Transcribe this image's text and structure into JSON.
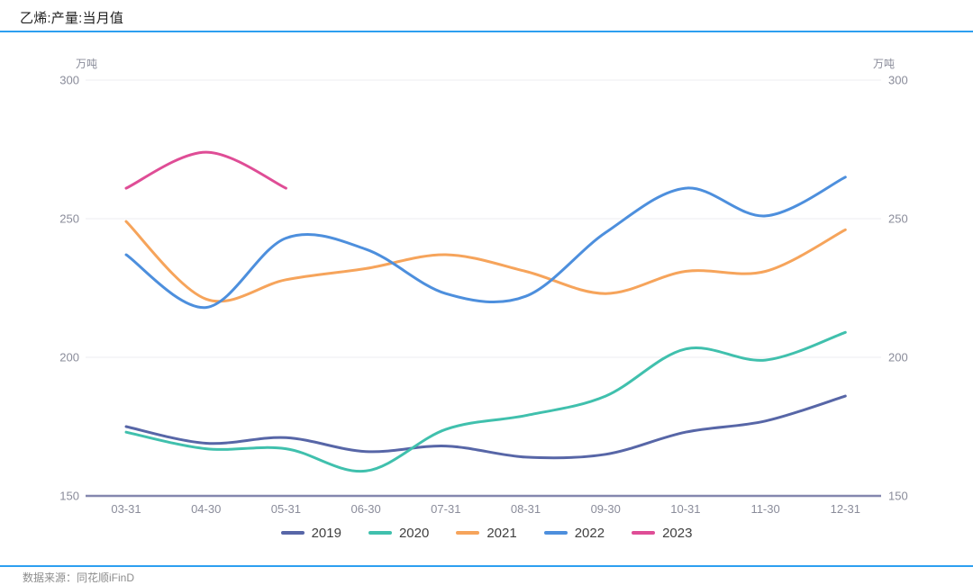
{
  "header": {
    "title": "乙烯:产量:当月值"
  },
  "footer": {
    "source": "数据来源：同花顺iFinD"
  },
  "axis": {
    "unit_left": "万吨",
    "unit_right": "万吨"
  },
  "colors": {
    "accent_rule": "#2d9ff0",
    "axis_line": "#8487ae",
    "gridline": "#ececf2",
    "tick_text": "#8a8c9a"
  },
  "chart_data": {
    "type": "line",
    "title": "乙烯:产量:当月值",
    "ylabel": "万吨",
    "categories": [
      "03-31",
      "04-30",
      "05-31",
      "06-30",
      "07-31",
      "08-31",
      "09-30",
      "10-31",
      "11-30",
      "12-31"
    ],
    "series": [
      {
        "name": "2019",
        "color": "#5766a7",
        "values": [
          175,
          169,
          171,
          166,
          168,
          164,
          165,
          173,
          177,
          186
        ]
      },
      {
        "name": "2020",
        "color": "#40c0ad",
        "values": [
          173,
          167,
          167,
          159,
          174,
          179,
          186,
          203,
          199,
          209
        ]
      },
      {
        "name": "2021",
        "color": "#f6a45b",
        "values": [
          249,
          221,
          228,
          232,
          237,
          231,
          223,
          231,
          231,
          246
        ]
      },
      {
        "name": "2022",
        "color": "#4d8fdd",
        "values": [
          237,
          218,
          243,
          239,
          223,
          222,
          245,
          261,
          251,
          265
        ]
      },
      {
        "name": "2023",
        "color": "#df4d96",
        "values": [
          261,
          274,
          261
        ]
      }
    ],
    "ylim": [
      150,
      300
    ],
    "yticks": [
      150,
      200,
      250,
      300
    ],
    "grid": true,
    "smooth": true,
    "legend_position": "bottom",
    "dual_y_axis": true
  }
}
